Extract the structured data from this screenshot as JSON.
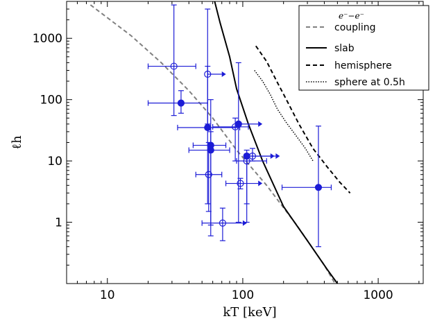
{
  "chart_data": {
    "type": "scatter",
    "title": "",
    "xlabel": "kT [keV]",
    "ylabel": "ℓh",
    "xscale": "log",
    "yscale": "log",
    "xlim": [
      5,
      2150
    ],
    "ylim": [
      0.1,
      4000
    ],
    "x_ticks": [
      10,
      100,
      1000
    ],
    "x_tick_labels": [
      "10",
      "100",
      "1000"
    ],
    "y_ticks": [
      1,
      10,
      100,
      1000
    ],
    "y_tick_labels": [
      "1",
      "10",
      "100",
      "1000"
    ],
    "grid": false,
    "legend_position": "top-right",
    "colors": {
      "points": "#1c1cd6",
      "ee_coupling": "#808080",
      "slab": "#000000",
      "hemisphere": "#000000",
      "sphere": "#000000"
    },
    "legend": [
      {
        "key": "ee_coupling",
        "label_math": "e⁻−e⁻",
        "label": "coupling",
        "style": "gray-dashed"
      },
      {
        "key": "slab",
        "label": "slab",
        "style": "solid"
      },
      {
        "key": "hemisphere",
        "label": "hemisphere",
        "style": "dashed"
      },
      {
        "key": "sphere",
        "label": "sphere at 0.5h",
        "style": "dotted"
      }
    ],
    "curves": [
      {
        "key": "ee_coupling",
        "x": [
          7.5,
          15,
          25,
          40,
          60,
          90,
          150,
          250,
          400,
          480
        ],
        "y": [
          3500,
          1100,
          400,
          140,
          50,
          15,
          4,
          0.9,
          0.2,
          0.1
        ]
      },
      {
        "key": "slab",
        "x": [
          62,
          68,
          80,
          90,
          110,
          140,
          200,
          300,
          420,
          500
        ],
        "y": [
          4000,
          1800,
          500,
          150,
          40,
          10,
          1.8,
          0.5,
          0.17,
          0.1
        ]
      },
      {
        "key": "hemisphere",
        "x": [
          125,
          150,
          180,
          210,
          260,
          330,
          420,
          520,
          620
        ],
        "y": [
          750,
          420,
          190,
          100,
          40,
          16,
          8,
          4.5,
          3
        ]
      },
      {
        "key": "sphere",
        "x": [
          122,
          140,
          160,
          180,
          210,
          250,
          290,
          330
        ],
        "y": [
          300,
          200,
          120,
          70,
          42,
          25,
          16,
          10
        ]
      }
    ],
    "points": [
      {
        "x": 31,
        "y": 350,
        "xlow": 20,
        "xhigh": 45,
        "ylow": 55,
        "yhigh": 3500,
        "filled": false,
        "lower_limit": false
      },
      {
        "x": 35,
        "y": 88,
        "xlow": 20,
        "xhigh": 55,
        "ylow": 60,
        "yhigh": 140,
        "filled": true,
        "lower_limit": false
      },
      {
        "x": 55,
        "y": 260,
        "xlow": 55,
        "xhigh": 70,
        "ylow": 40,
        "yhigh": 3000,
        "filled": false,
        "lower_limit": true
      },
      {
        "x": 55,
        "y": 35,
        "xlow": 33,
        "xhigh": 95,
        "ylow": 2,
        "yhigh": 350,
        "filled": true,
        "lower_limit": false
      },
      {
        "x": 58,
        "y": 18,
        "xlow": 43,
        "xhigh": 75,
        "ylow": 0.9,
        "yhigh": 30,
        "filled": true,
        "lower_limit": false
      },
      {
        "x": 58,
        "y": 15,
        "xlow": 40,
        "xhigh": 80,
        "ylow": 0.6,
        "yhigh": 100,
        "filled": true,
        "lower_limit": false
      },
      {
        "x": 56,
        "y": 6,
        "xlow": 45,
        "xhigh": 70,
        "ylow": 1.5,
        "yhigh": 20,
        "filled": false,
        "lower_limit": false
      },
      {
        "x": 88,
        "y": 36,
        "xlow": 60,
        "xhigh": 110,
        "ylow": 10,
        "yhigh": 50,
        "filled": false,
        "lower_limit": false
      },
      {
        "x": 93,
        "y": 40,
        "xlow": 93,
        "xhigh": 130,
        "ylow": 1,
        "yhigh": 400,
        "filled": true,
        "lower_limit": true
      },
      {
        "x": 96,
        "y": 4.3,
        "xlow": 75,
        "xhigh": 130,
        "ylow": 3.5,
        "yhigh": 5.2,
        "filled": false,
        "lower_limit": true
      },
      {
        "x": 71,
        "y": 0.97,
        "xlow": 50,
        "xhigh": 100,
        "ylow": 0.5,
        "yhigh": 1.7,
        "filled": false,
        "lower_limit": true
      },
      {
        "x": 107,
        "y": 12,
        "xlow": 107,
        "xhigh": 160,
        "ylow": 2,
        "yhigh": 15,
        "filled": true,
        "lower_limit": true
      },
      {
        "x": 107,
        "y": 10,
        "xlow": 90,
        "xhigh": 150,
        "ylow": 1,
        "yhigh": 13,
        "filled": false,
        "lower_limit": false
      },
      {
        "x": 118,
        "y": 12,
        "xlow": 118,
        "xhigh": 175,
        "ylow": 10,
        "yhigh": 16,
        "filled": false,
        "lower_limit": true
      },
      {
        "x": 362,
        "y": 3.7,
        "xlow": 195,
        "xhigh": 450,
        "ylow": 0.4,
        "yhigh": 37,
        "filled": true,
        "lower_limit": false
      }
    ]
  }
}
